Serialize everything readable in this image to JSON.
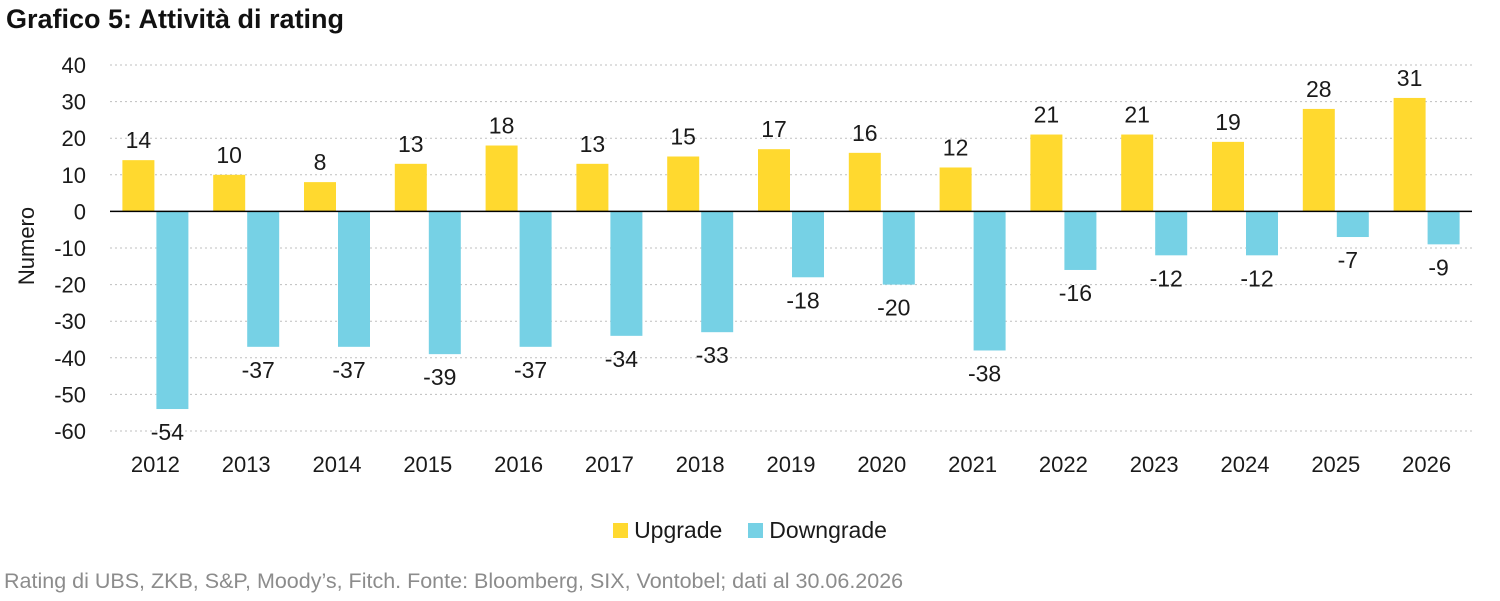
{
  "header": {
    "title": "Grafico 5: Attività di rating"
  },
  "footer": {
    "source": "Rating di UBS, ZKB, S&P, Moody’s, Fitch. Fonte: Bloomberg, SIX, Vontobel; dati al 30.06.2026"
  },
  "colors": {
    "upgrade": "#FFD92F",
    "downgrade": "#76D1E5",
    "grid": "#bfbfbf",
    "axis": "#000000"
  },
  "chart_data": {
    "type": "bar",
    "ylabel": "Numero",
    "ylim": [
      -60,
      40
    ],
    "yticks": [
      40,
      30,
      20,
      10,
      0,
      -10,
      -20,
      -30,
      -40,
      -50,
      -60
    ],
    "grid": "horizontal dotted",
    "legend_position": "bottom",
    "categories": [
      "2012",
      "2013",
      "2014",
      "2015",
      "2016",
      "2017",
      "2018",
      "2019",
      "2020",
      "2021",
      "2022",
      "2023",
      "2024",
      "2025",
      "2026"
    ],
    "series": [
      {
        "name": "Upgrade",
        "values": [
          14,
          10,
          8,
          13,
          18,
          13,
          15,
          17,
          16,
          12,
          21,
          21,
          19,
          28,
          31
        ]
      },
      {
        "name": "Downgrade",
        "values": [
          -54,
          -37,
          -37,
          -39,
          -37,
          -34,
          -33,
          -18,
          -20,
          -38,
          -16,
          -12,
          -12,
          -7,
          -9
        ]
      }
    ]
  }
}
